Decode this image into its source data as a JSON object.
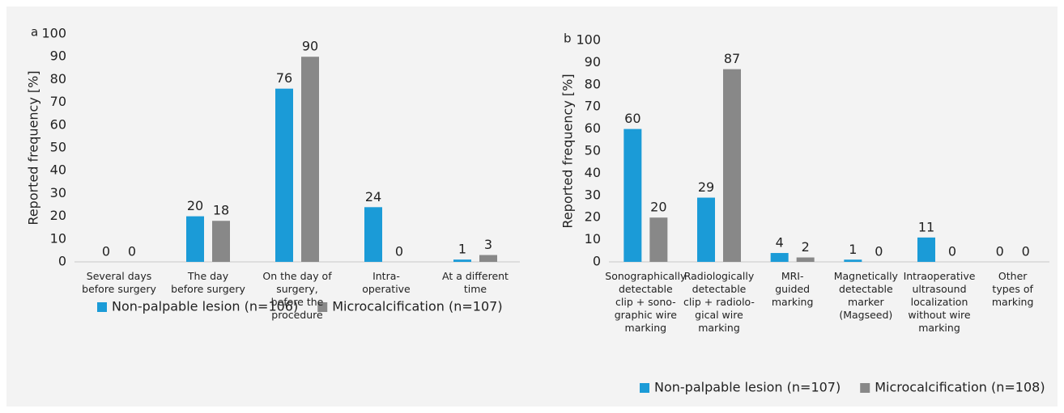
{
  "chart_data": [
    {
      "type": "bar",
      "panel": "a",
      "ylabel": "Reported frequency [%]",
      "categories": [
        "Several days\nbefore surgery",
        "The day\nbefore surgery",
        "On the day of surgery,\nbefore the procedure",
        "Intra-\noperative",
        "At a different\ntime"
      ],
      "series": [
        {
          "name": "Non-palpable lesion (n=106)",
          "color": "#1b9bd7",
          "values": [
            0,
            20,
            76,
            24,
            1
          ]
        },
        {
          "name": "Microcalcification (n=107)",
          "color": "#888888",
          "values": [
            0,
            18,
            90,
            0,
            3
          ]
        }
      ],
      "ylim": [
        0,
        100
      ],
      "yticks": [
        0,
        10,
        20,
        30,
        40,
        50,
        60,
        70,
        80,
        90,
        100
      ],
      "legend": "bottom"
    },
    {
      "type": "bar",
      "panel": "b",
      "ylabel": "Reported frequency [%]",
      "categories": [
        "Sonographically\ndetectable\nclip + sono-\ngraphic wire\nmarking",
        "Radiologically\ndetectable\nclip + radiolo-\ngical wire\nmarking",
        "MRI-\nguided\nmarking",
        "Magnetically\ndetectable\nmarker\n(Magseed)",
        "Intraoperative\nultrasound\nlocalization\nwithout wire\nmarking",
        "Other\ntypes of\nmarking"
      ],
      "series": [
        {
          "name": "Non-palpable lesion (n=107)",
          "color": "#1b9bd7",
          "values": [
            60,
            29,
            4,
            1,
            11,
            0
          ]
        },
        {
          "name": "Microcalcification (n=108)",
          "color": "#888888",
          "values": [
            20,
            87,
            2,
            0,
            0,
            0
          ]
        }
      ],
      "ylim": [
        0,
        100
      ],
      "yticks": [
        0,
        10,
        20,
        30,
        40,
        50,
        60,
        70,
        80,
        90,
        100
      ],
      "legend": "bottom right"
    }
  ]
}
